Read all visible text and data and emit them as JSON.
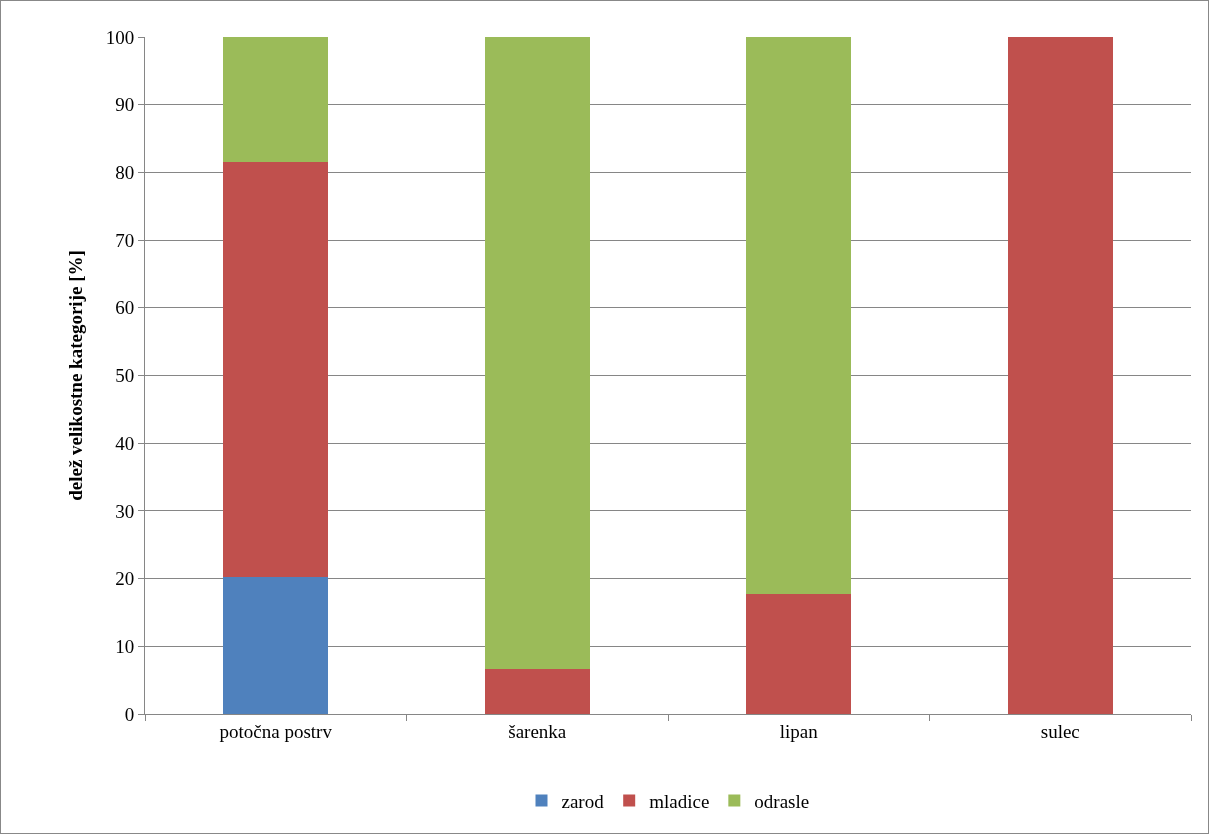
{
  "chart_data": {
    "type": "bar",
    "stacked": true,
    "ylabel": "delež velikostne kategorije [%]",
    "categories": [
      "potočna postrv",
      "šarenka",
      "lipan",
      "sulec"
    ],
    "series": [
      {
        "name": "zarod",
        "color": "#4f81bd",
        "values": [
          20.2,
          0,
          0,
          0
        ]
      },
      {
        "name": "mladice",
        "color": "#c0504d",
        "values": [
          61.3,
          6.6,
          17.7,
          100
        ]
      },
      {
        "name": "odrasle",
        "color": "#9bbb59",
        "values": [
          18.5,
          93.4,
          82.3,
          0
        ]
      }
    ],
    "ylim": [
      0,
      100
    ],
    "yticks": [
      0,
      10,
      20,
      30,
      40,
      50,
      60,
      70,
      80,
      90,
      100
    ],
    "grid": "y",
    "legend": "bottom"
  }
}
